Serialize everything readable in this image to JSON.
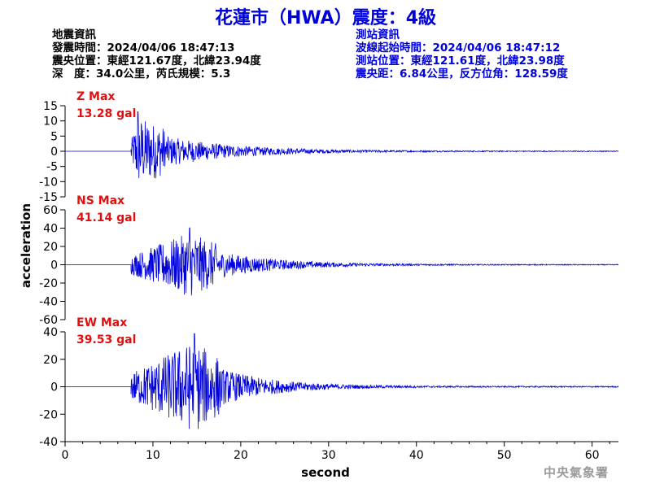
{
  "title": "花蓮市（HWA）震度：4級",
  "quake_info": {
    "heading": "地震資訊",
    "origin_time": "發震時間：2024/04/06 18:47:13",
    "epicenter": "震央位置：東經121.67度，北緯23.94度",
    "depth_mag": "深　度：34.0公里，芮氏規模：5.3"
  },
  "station_info": {
    "heading": "測站資訊",
    "wave_start": "波線起始時間：2024/04/06 18:47:12",
    "location": "測站位置：東經121.61度，北緯23.98度",
    "distance": "震央距：6.84公里，反方位角：128.59度"
  },
  "agency": "中央氣象署",
  "chart_data": {
    "type": "line",
    "xlabel": "second",
    "ylabel": "acceleration",
    "xlim": [
      0,
      63
    ],
    "xticks": [
      0,
      10,
      20,
      30,
      40,
      50,
      60
    ],
    "line_color": "#0000dd",
    "series": [
      {
        "name": "Z",
        "max_label": "Z Max",
        "max_value": "13.28 gal",
        "ylim": [
          -15,
          15
        ],
        "yticks": [
          -15,
          -10,
          -5,
          0,
          5,
          10,
          15
        ],
        "onset": 7.5,
        "peak_time": 8.3,
        "peak": 13.28,
        "decay": 8
      },
      {
        "name": "NS",
        "max_label": "NS Max",
        "max_value": "41.14 gal",
        "ylim": [
          -60,
          60
        ],
        "yticks": [
          -60,
          -40,
          -20,
          0,
          20,
          40,
          60
        ],
        "onset": 7.5,
        "peak_time": 14.2,
        "peak": 41.14,
        "decay": 7
      },
      {
        "name": "EW",
        "max_label": "EW Max",
        "max_value": "39.53 gal",
        "ylim": [
          -40,
          40
        ],
        "yticks": [
          -40,
          -20,
          0,
          20,
          40
        ],
        "onset": 7.5,
        "peak_time": 14.7,
        "peak": 39.53,
        "decay": 6
      }
    ]
  }
}
